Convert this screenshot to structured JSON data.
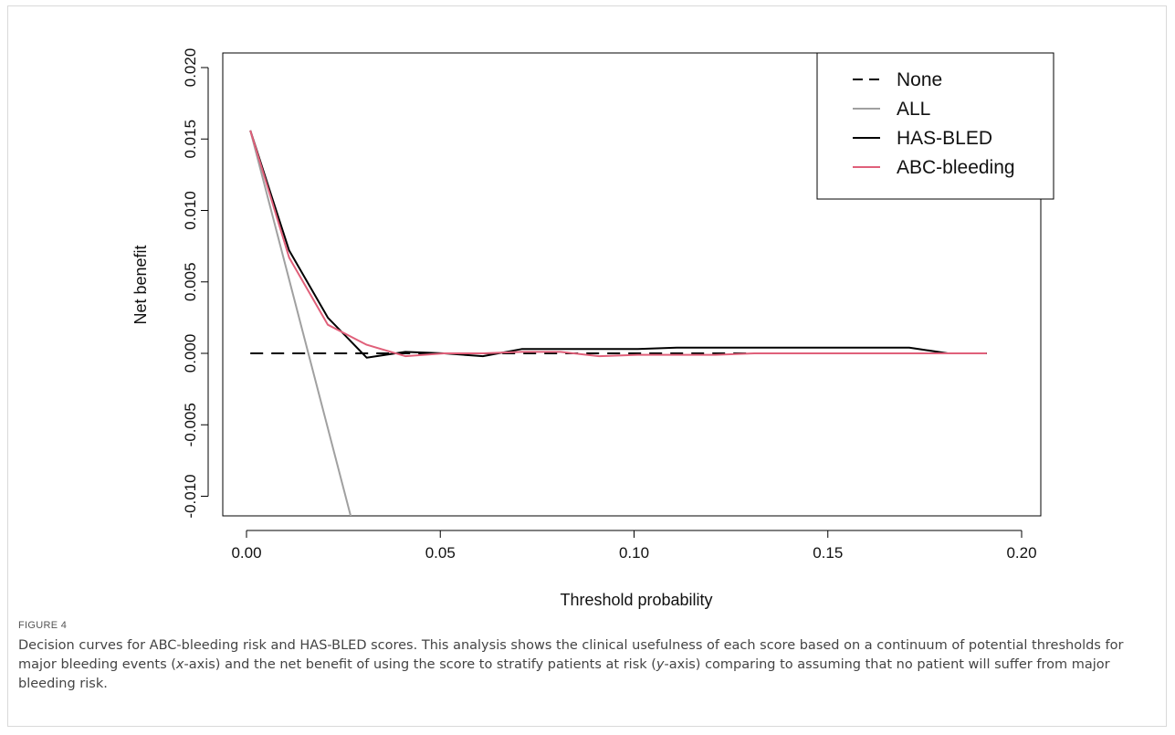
{
  "figure": {
    "label": "FIGURE 4",
    "caption_parts": [
      {
        "text": "Decision curves for ABC-bleeding risk and HAS-BLED scores. This analysis shows the clinical usefulness of each score based on a continuum of potential thresholds for major bleeding events (",
        "italic": false
      },
      {
        "text": "x",
        "italic": true
      },
      {
        "text": "-axis) and the net benefit of using the score to stratify patients at risk (",
        "italic": false
      },
      {
        "text": "y",
        "italic": true
      },
      {
        "text": "-axis) comparing to assuming that no patient will suffer from major bleeding risk.",
        "italic": false
      }
    ]
  },
  "chart_data": {
    "type": "line",
    "xlabel": "Threshold probability",
    "ylabel": "Net benefit",
    "xlim": [
      0.0,
      0.2
    ],
    "ylim": [
      -0.0115,
      0.0205
    ],
    "x_ticks": [
      0.0,
      0.05,
      0.1,
      0.15,
      0.2
    ],
    "x_tick_labels": [
      "0.00",
      "0.05",
      "0.10",
      "0.15",
      "0.20"
    ],
    "y_ticks": [
      -0.01,
      -0.005,
      0.0,
      0.005,
      0.01,
      0.015,
      0.02
    ],
    "y_tick_labels": [
      "-0.010",
      "-0.005",
      "0.000",
      "0.005",
      "0.010",
      "0.015",
      "0.020"
    ],
    "grid": false,
    "legend_position": "top-right",
    "series": [
      {
        "name": "None",
        "color": "#000000",
        "dash": "dashed",
        "x": [
          0.001,
          0.191
        ],
        "y": [
          0.0,
          0.0
        ]
      },
      {
        "name": "ALL",
        "color": "#a0a0a0",
        "dash": "solid",
        "x": [
          0.001,
          0.027
        ],
        "y": [
          0.0156,
          -0.0115
        ]
      },
      {
        "name": "HAS-BLED",
        "color": "#000000",
        "dash": "solid",
        "x": [
          0.001,
          0.011,
          0.021,
          0.031,
          0.041,
          0.051,
          0.061,
          0.071,
          0.081,
          0.091,
          0.101,
          0.111,
          0.121,
          0.131,
          0.141,
          0.151,
          0.161,
          0.171,
          0.181,
          0.191
        ],
        "y": [
          0.0156,
          0.0072,
          0.0025,
          -0.0003,
          0.0001,
          0.0,
          -0.0002,
          0.0003,
          0.0003,
          0.0003,
          0.0003,
          0.0004,
          0.0004,
          0.0004,
          0.0004,
          0.0004,
          0.0004,
          0.0004,
          0.0,
          0.0
        ]
      },
      {
        "name": "ABC-bleeding",
        "color": "#e0607a",
        "dash": "solid",
        "x": [
          0.001,
          0.011,
          0.021,
          0.031,
          0.041,
          0.051,
          0.061,
          0.071,
          0.081,
          0.091,
          0.101,
          0.111,
          0.121,
          0.131,
          0.141,
          0.151,
          0.161,
          0.171,
          0.181,
          0.191
        ],
        "y": [
          0.0156,
          0.0067,
          0.002,
          0.0006,
          -0.0002,
          0.0,
          0.0,
          0.0001,
          0.0001,
          -0.0002,
          -0.0001,
          -0.0001,
          -0.0001,
          0.0,
          0.0,
          0.0,
          0.0,
          0.0,
          0.0,
          0.0
        ]
      }
    ]
  }
}
